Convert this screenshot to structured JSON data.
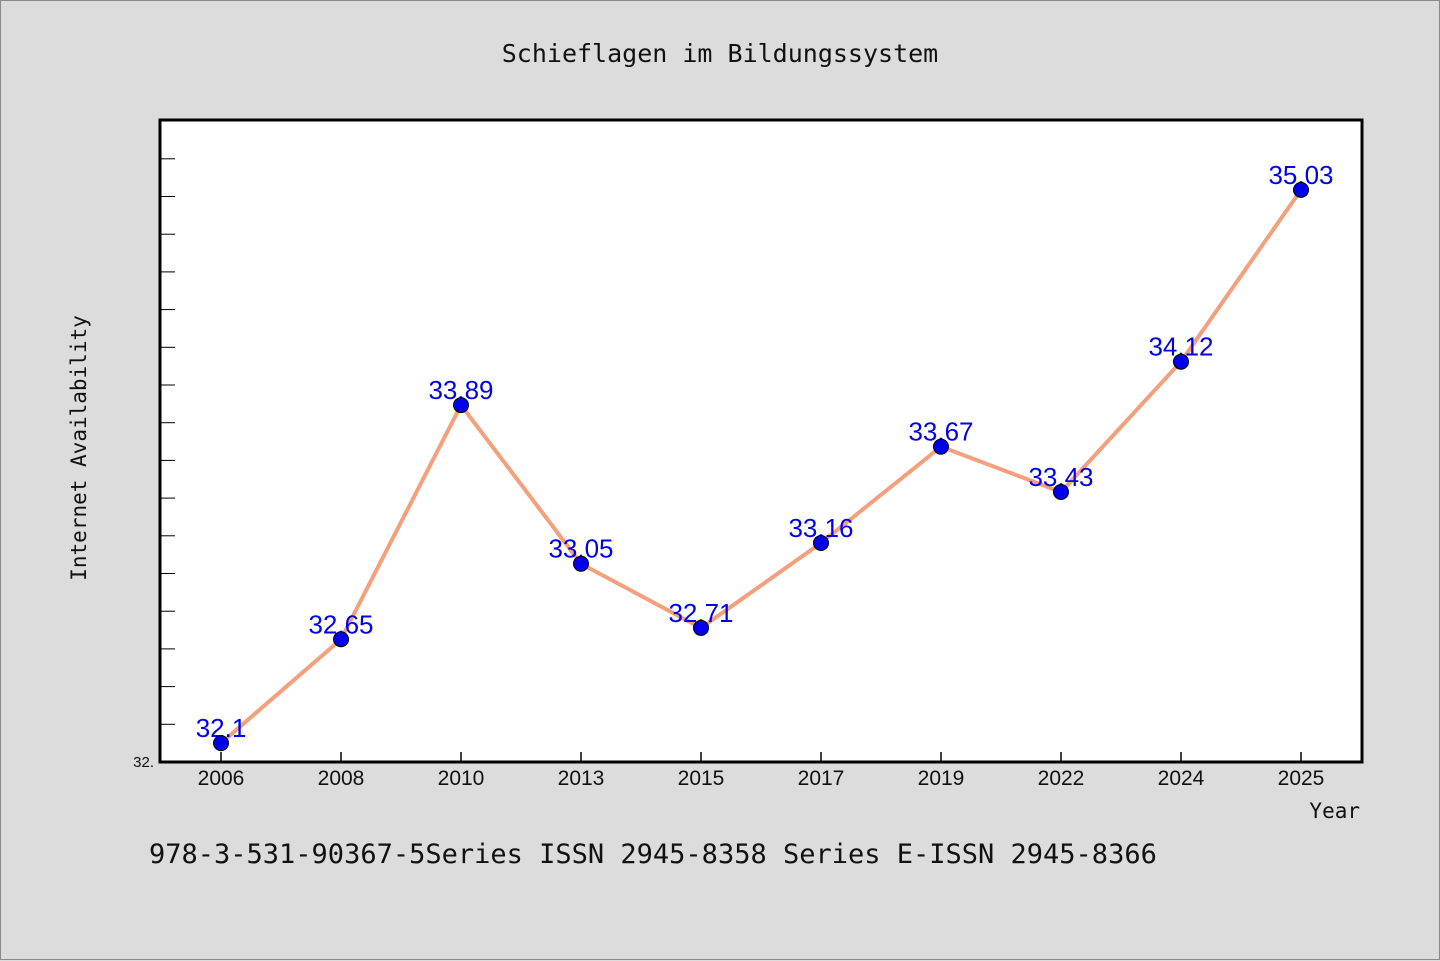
{
  "chart_data": {
    "type": "line",
    "title": "Schieflagen im Bildungssystem",
    "xlabel": "Year",
    "ylabel": "Internet Availability",
    "categories": [
      "2006",
      "2008",
      "2010",
      "2013",
      "2015",
      "2017",
      "2019",
      "2022",
      "2024",
      "2025"
    ],
    "series": [
      {
        "values": [
          32.1,
          32.65,
          33.89,
          33.05,
          32.71,
          33.16,
          33.67,
          33.43,
          34.12,
          35.03
        ],
        "value_labels": [
          "32.1",
          "32.65",
          "33.89",
          "33.05",
          "32.71",
          "33.16",
          "33.67",
          "33.43",
          "34.12",
          "35.03"
        ],
        "line_color": "#f4a07c",
        "marker_color": "#0000ee"
      }
    ],
    "ylim": [
      32.0,
      35.4
    ],
    "y_tick_label": "32.",
    "grid": false,
    "background_color": "#dcdcdc",
    "plot_background": "#ffffff"
  },
  "footer": {
    "text": "978-3-531-90367-5Series ISSN 2945-8358 Series E-ISSN 2945-8366"
  }
}
